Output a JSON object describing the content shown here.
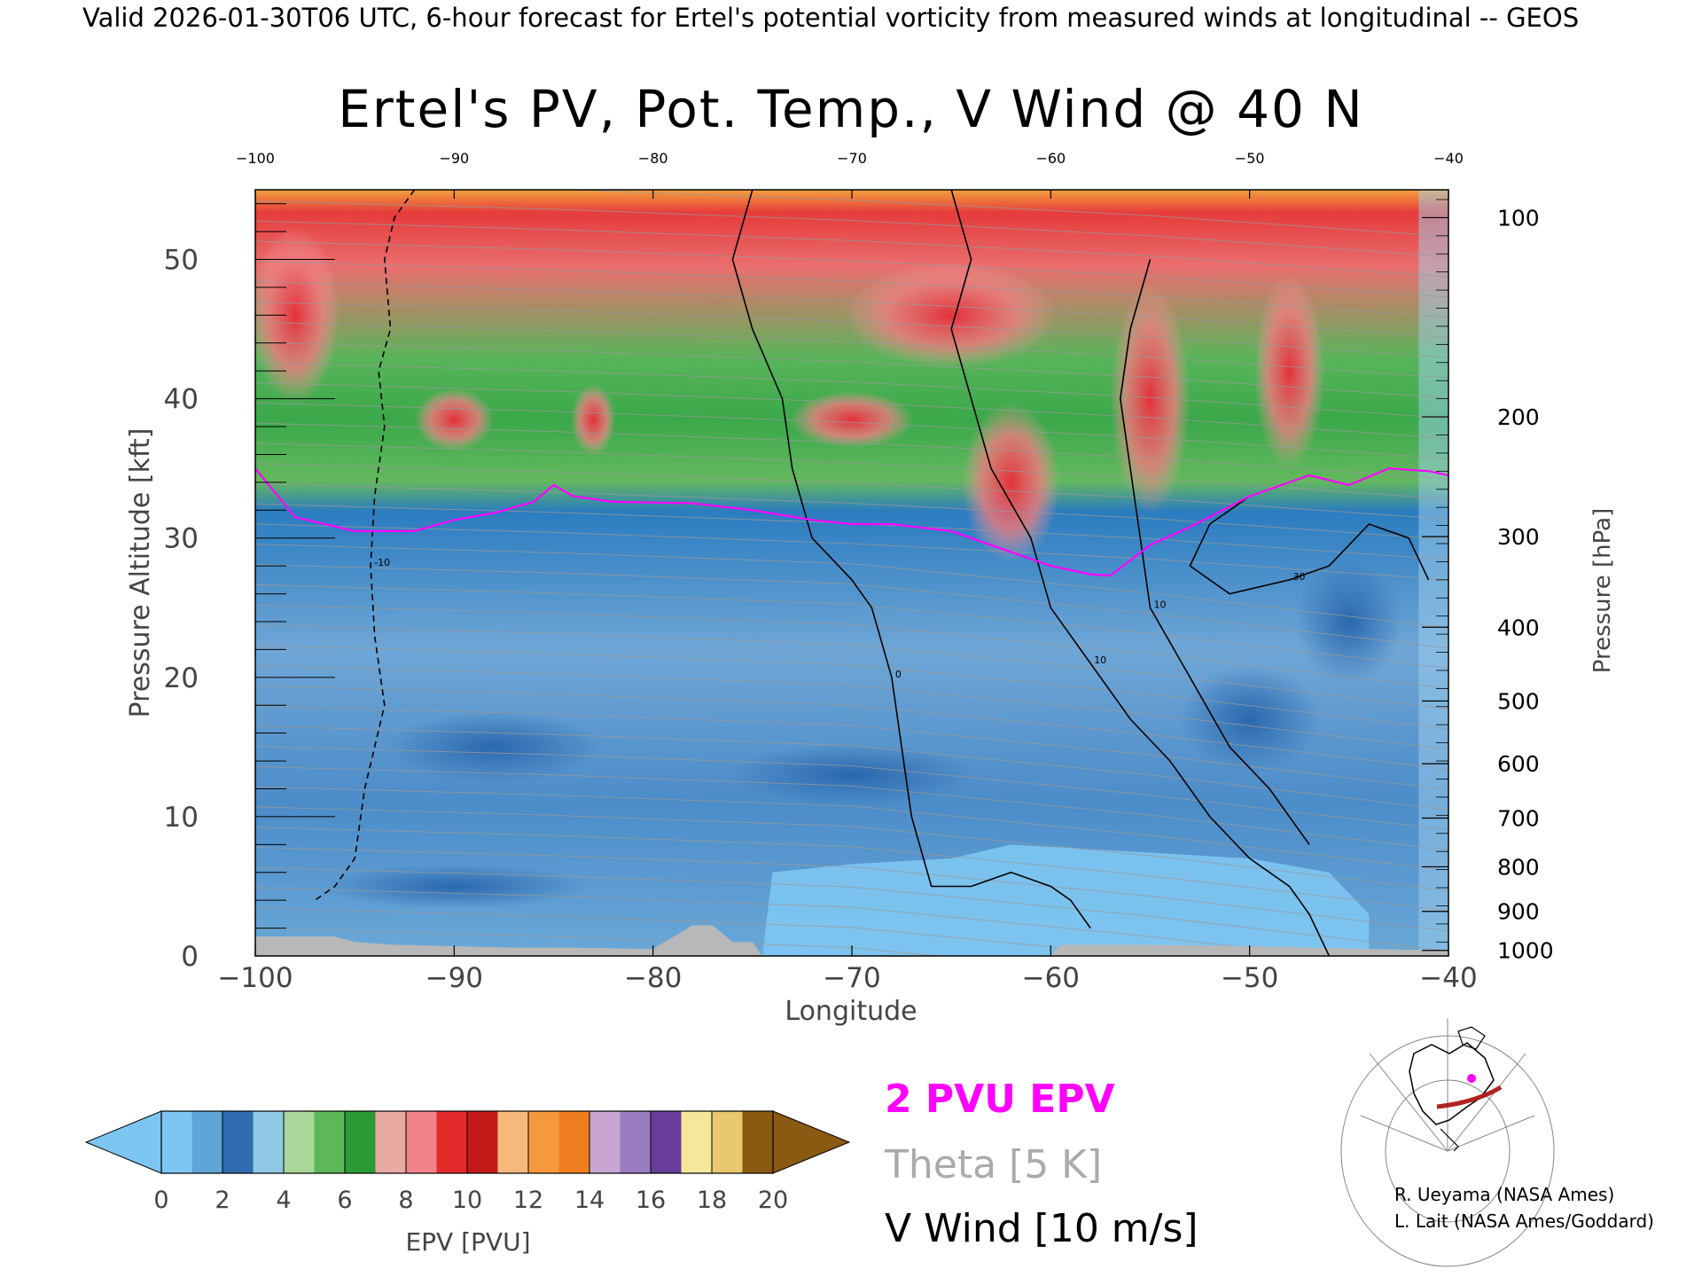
{
  "header_text": "Valid 2026-01-30T06 UTC, 6-hour forecast for Ertel's potential vorticity from measured winds at longitudinal -- GEOS",
  "chart_data": {
    "type": "heatmap",
    "title": "Ertel's PV, Pot. Temp., V Wind @ 40 N",
    "xlabel": "Longitude",
    "ylabel": "Pressure Altitude [kft]",
    "y2label": "Pressure [hPa]",
    "xlim": [
      -100,
      -40
    ],
    "ylim": [
      0,
      55
    ],
    "x_ticks": [
      -100,
      -90,
      -80,
      -70,
      -60,
      -50,
      -40
    ],
    "x_tick_labels": [
      "−100",
      "−90",
      "−80",
      "−70",
      "−60",
      "−50",
      "−40"
    ],
    "top_tick_labels": [
      "−100",
      "−90",
      "−80",
      "−70",
      "−60",
      "−50",
      "−40"
    ],
    "y_ticks": [
      0,
      10,
      20,
      30,
      40,
      50
    ],
    "pressure_ticks": [
      {
        "hpa": 100,
        "label": "100",
        "kft": 53.0
      },
      {
        "hpa": 200,
        "label": "200",
        "kft": 38.7
      },
      {
        "hpa": 300,
        "label": "300",
        "kft": 30.1
      },
      {
        "hpa": 400,
        "label": "400",
        "kft": 23.6
      },
      {
        "hpa": 500,
        "label": "500",
        "kft": 18.3
      },
      {
        "hpa": 600,
        "label": "600",
        "kft": 13.8
      },
      {
        "hpa": 700,
        "label": "700",
        "kft": 9.9
      },
      {
        "hpa": 800,
        "label": "800",
        "kft": 6.4
      },
      {
        "hpa": 900,
        "label": "900",
        "kft": 3.2
      },
      {
        "hpa": 1000,
        "label": "1000",
        "kft": 0.4
      }
    ],
    "tropopause_2pvu": {
      "name": "2 PVU EPV",
      "x": [
        -100,
        -98,
        -95,
        -92,
        -90,
        -88,
        -86,
        -85,
        -84,
        -82,
        -78,
        -75,
        -72,
        -70,
        -68,
        -65,
        -62,
        -60,
        -58,
        -57,
        -55,
        -53,
        -50,
        -47,
        -45,
        -43,
        -41,
        -40
      ],
      "y": [
        35,
        31.5,
        30.5,
        30.5,
        31.3,
        31.8,
        32.6,
        33.8,
        33.0,
        32.6,
        32.5,
        32.0,
        31.3,
        31.0,
        31.0,
        30.5,
        29.0,
        28.0,
        27.4,
        27.3,
        29.5,
        30.8,
        33.0,
        34.5,
        33.8,
        35.0,
        34.8,
        34.5
      ]
    },
    "surface_gray": {
      "x": [
        -100,
        -98.5,
        -96,
        -95,
        -93,
        -90,
        -87,
        -85,
        -84,
        -80,
        -78,
        -77,
        -76,
        -75,
        -74.5,
        -60,
        -59.5,
        -55,
        -50,
        -47,
        -44,
        -40
      ],
      "y": [
        1.4,
        1.4,
        1.4,
        1.0,
        0.8,
        0.7,
        0.6,
        0.6,
        0.6,
        0.5,
        2.2,
        2.2,
        1.0,
        1.0,
        0.0,
        0.0,
        0.8,
        0.8,
        0.7,
        0.6,
        0.5,
        0.4
      ]
    },
    "v_wind_contours": [
      {
        "label": "-10",
        "style": "dashed",
        "x": [
          -92,
          -93,
          -93.5,
          -93.2,
          -93.8,
          -93.5,
          -94,
          -94.2,
          -94,
          -93.5,
          -94.5,
          -95,
          -96,
          -97
        ],
        "y": [
          55,
          53,
          50,
          45,
          42,
          38,
          33,
          28,
          23,
          18,
          12,
          7,
          5,
          4
        ]
      },
      {
        "label": "0",
        "style": "solid",
        "x": [
          -75,
          -76,
          -75,
          -73.5,
          -73,
          -72,
          -70,
          -69,
          -68,
          -67.5,
          -67,
          -66,
          -64,
          -62,
          -60,
          -59,
          -58
        ],
        "y": [
          55,
          50,
          45,
          40,
          35,
          30,
          27,
          25,
          20,
          15,
          10,
          5,
          5,
          6,
          5,
          4,
          2
        ]
      },
      {
        "label": "10",
        "style": "solid",
        "x": [
          -65,
          -64,
          -65,
          -64,
          -63,
          -61,
          -60,
          -58,
          -56,
          -54,
          -52,
          -50,
          -48,
          -47,
          -46
        ],
        "y": [
          55,
          50,
          45,
          40,
          35,
          30,
          25,
          21,
          17,
          14,
          10,
          7,
          5,
          3,
          0
        ]
      },
      {
        "label": "10",
        "style": "solid",
        "x": [
          -55,
          -56,
          -56.5,
          -56,
          -55.5,
          -55,
          -53,
          -51,
          -49,
          -48,
          -47
        ],
        "y": [
          50,
          45,
          40,
          35,
          30,
          25,
          20,
          15,
          12,
          10,
          8
        ]
      },
      {
        "label": "30",
        "style": "solid",
        "x": [
          -50,
          -52,
          -53,
          -51,
          -48,
          -46,
          -44,
          -42,
          -41
        ],
        "y": [
          33,
          31,
          28,
          26,
          27,
          28,
          31,
          30,
          27
        ]
      }
    ],
    "theta_contours_K": [
      270,
      280,
      290,
      300,
      310,
      320,
      330,
      340,
      350,
      360,
      370,
      380,
      390,
      400,
      410
    ],
    "colorbar": {
      "label": "EPV [PVU]",
      "ticks": [
        "0",
        "2",
        "4",
        "6",
        "8",
        "10",
        "12",
        "14",
        "16",
        "18",
        "20"
      ],
      "colors": [
        "#7ec6f2",
        "#5fa5d8",
        "#2f6db0",
        "#8fc9e5",
        "#a9d79a",
        "#5db858",
        "#2a9b35",
        "#e8aaa2",
        "#f2828a",
        "#e32b2b",
        "#c41a1a",
        "#f7b97a",
        "#f59a3c",
        "#ef7e1e",
        "#c9a6d2",
        "#9a7cc0",
        "#6a3d9a",
        "#f5e89a",
        "#e8c870",
        "#8a5a12"
      ],
      "extend_low_color": "#7ec6f2",
      "extend_high_color": "#8a5a12"
    }
  },
  "legend": {
    "epv": "2 PVU EPV",
    "theta": "Theta [5 K]",
    "vwind": "V Wind [10 m/s]",
    "epv_color": "#ff00ff",
    "theta_color": "#aaaaaa",
    "vwind_color": "#000000"
  },
  "credits": {
    "line1": "R. Ueyama (NASA Ames)",
    "line2": "L. Lait (NASA Ames/Goddard)"
  },
  "inset_map": {
    "description_icon": "globe-map-icon"
  },
  "colors": {
    "stratosphere_red": "#e8444a",
    "stratosphere_green": "#3aa84a",
    "troposphere_blue": "#4f8fc8",
    "surface_gray": "#b8b8b8",
    "top_orange": "#f2933a"
  }
}
